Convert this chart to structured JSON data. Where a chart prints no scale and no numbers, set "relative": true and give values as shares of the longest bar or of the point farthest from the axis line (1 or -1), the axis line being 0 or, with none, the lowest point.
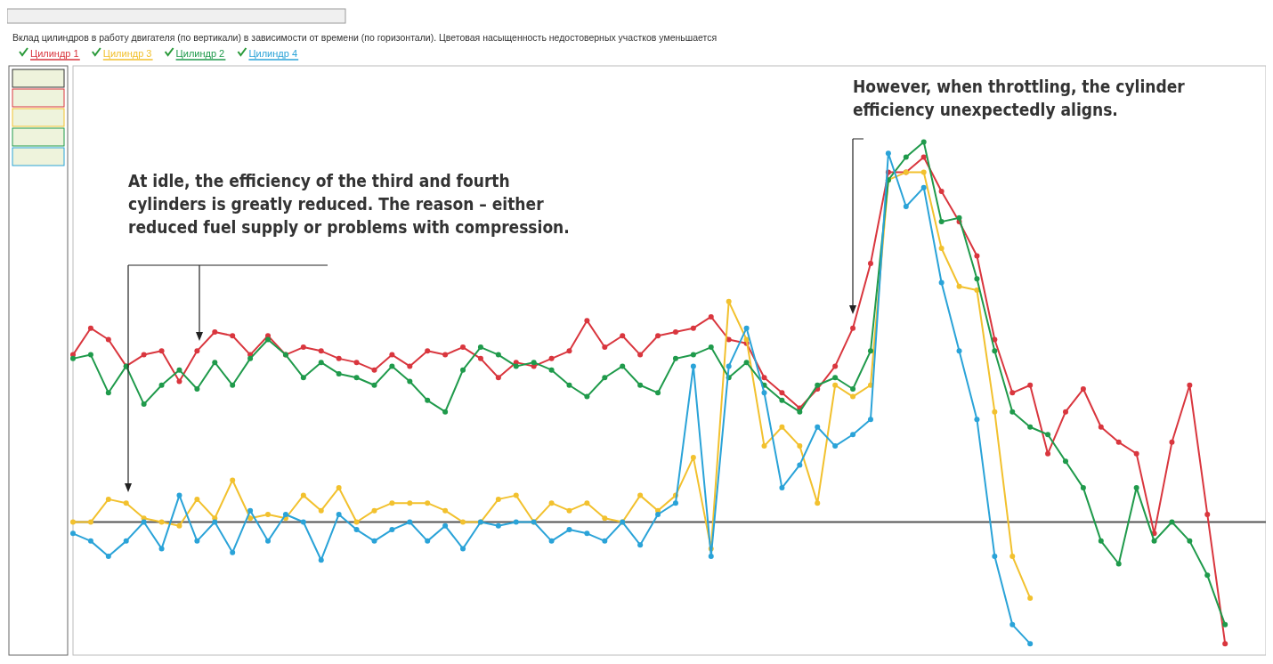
{
  "chart_data": {
    "type": "line",
    "relative": true,
    "title": "Вклад цилиндров в работу двигателя (по вертикали) в зависимости от времени (по горизонтали). Цветовая насыщенность недостоверных участков уменьшается",
    "categories": [
      null,
      null,
      null,
      null,
      null,
      null,
      null,
      null,
      null,
      null,
      null,
      null,
      null,
      null,
      null,
      null,
      null,
      null,
      null,
      null,
      null,
      null,
      null,
      null,
      null,
      null,
      null,
      null,
      null,
      null,
      null,
      null,
      null,
      null,
      null,
      null,
      null,
      null,
      null,
      null,
      null,
      null,
      null,
      null,
      null,
      null,
      null,
      null,
      null,
      null,
      null,
      null,
      null,
      null,
      null,
      null,
      null,
      null,
      null,
      null,
      null,
      null,
      null,
      null,
      null,
      null,
      null,
      null
    ],
    "series": [
      {
        "name": "Цилиндр 1",
        "color": "#d9363e",
        "values": [
          0.44,
          0.51,
          0.48,
          0.41,
          0.44,
          0.45,
          0.37,
          0.45,
          0.5,
          0.49,
          0.44,
          0.49,
          0.44,
          0.46,
          0.45,
          0.43,
          0.42,
          0.4,
          0.44,
          0.41,
          0.45,
          0.44,
          0.46,
          0.43,
          0.38,
          0.42,
          0.41,
          0.43,
          0.45,
          0.53,
          0.46,
          0.49,
          0.44,
          0.49,
          0.5,
          0.51,
          0.54,
          0.48,
          0.47,
          0.38,
          0.34,
          0.3,
          0.35,
          0.41,
          0.51,
          0.68,
          0.92,
          0.92,
          0.96,
          0.87,
          0.79,
          0.7,
          0.48,
          0.34,
          0.36,
          0.18,
          0.29,
          0.35,
          0.25,
          0.21,
          0.18,
          -0.03,
          0.21,
          0.36,
          0.02,
          -0.32,
          null,
          null
        ]
      },
      {
        "name": "Цилиндр 3",
        "color": "#f2c12e",
        "values": [
          0,
          0,
          0.06,
          0.05,
          0.01,
          0,
          -0.01,
          0.06,
          0.01,
          0.11,
          0.01,
          0.02,
          0.01,
          0.07,
          0.03,
          0.09,
          0,
          0.03,
          0.05,
          0.05,
          0.05,
          0.03,
          0,
          0,
          0.06,
          0.07,
          0,
          0.05,
          0.03,
          0.05,
          0.01,
          0,
          0.07,
          0.03,
          0.07,
          0.17,
          -0.07,
          0.58,
          0.48,
          0.2,
          0.25,
          0.2,
          0.05,
          0.36,
          0.33,
          0.36,
          0.9,
          0.92,
          0.92,
          0.72,
          0.62,
          0.61,
          0.29,
          -0.09,
          -0.2,
          null,
          null,
          null,
          null,
          null,
          null,
          null,
          null,
          null,
          null,
          null,
          null,
          null
        ]
      },
      {
        "name": "Цилиндр 2",
        "color": "#1f9a4b",
        "values": [
          0.43,
          0.44,
          0.34,
          0.41,
          0.31,
          0.36,
          0.4,
          0.35,
          0.42,
          0.36,
          0.43,
          0.48,
          0.44,
          0.38,
          0.42,
          0.39,
          0.38,
          0.36,
          0.41,
          0.37,
          0.32,
          0.29,
          0.4,
          0.46,
          0.44,
          0.41,
          0.42,
          0.4,
          0.36,
          0.33,
          0.38,
          0.41,
          0.36,
          0.34,
          0.43,
          0.44,
          0.46,
          0.38,
          0.42,
          0.36,
          0.32,
          0.29,
          0.36,
          0.38,
          0.35,
          0.45,
          0.9,
          0.96,
          1,
          0.79,
          0.8,
          0.64,
          0.45,
          0.29,
          0.25,
          0.23,
          0.16,
          0.09,
          -0.05,
          -0.11,
          0.09,
          -0.05,
          0,
          -0.05,
          -0.14,
          -0.27,
          null,
          null
        ]
      },
      {
        "name": "Цилиндр 4",
        "color": "#2aa3d8",
        "values": [
          -0.03,
          -0.05,
          -0.09,
          -0.05,
          0,
          -0.07,
          0.07,
          -0.05,
          0,
          -0.08,
          0.03,
          -0.05,
          0.02,
          0,
          -0.1,
          0.02,
          -0.02,
          -0.05,
          -0.02,
          0,
          -0.05,
          -0.01,
          -0.07,
          0,
          -0.01,
          0,
          0,
          -0.05,
          -0.02,
          -0.03,
          -0.05,
          0,
          -0.06,
          0.02,
          0.05,
          0.41,
          -0.09,
          0.41,
          0.51,
          0.34,
          0.09,
          0.15,
          0.25,
          0.2,
          0.23,
          0.27,
          0.97,
          0.83,
          0.88,
          0.63,
          0.45,
          0.27,
          -0.09,
          -0.27,
          -0.32,
          null,
          null,
          null,
          null,
          null,
          null,
          null,
          null,
          null,
          null,
          null,
          null,
          null
        ]
      }
    ],
    "legend": "top left",
    "marker": "circle",
    "line_style": "solid",
    "annotations": [
      "At idle, the efficiency of the third and fourth cylinders is greatly reduced. The reason – either reduced fuel supply or problems with compression.",
      "However, when throttling, the cylinder efficiency unexpectedly aligns."
    ]
  }
}
